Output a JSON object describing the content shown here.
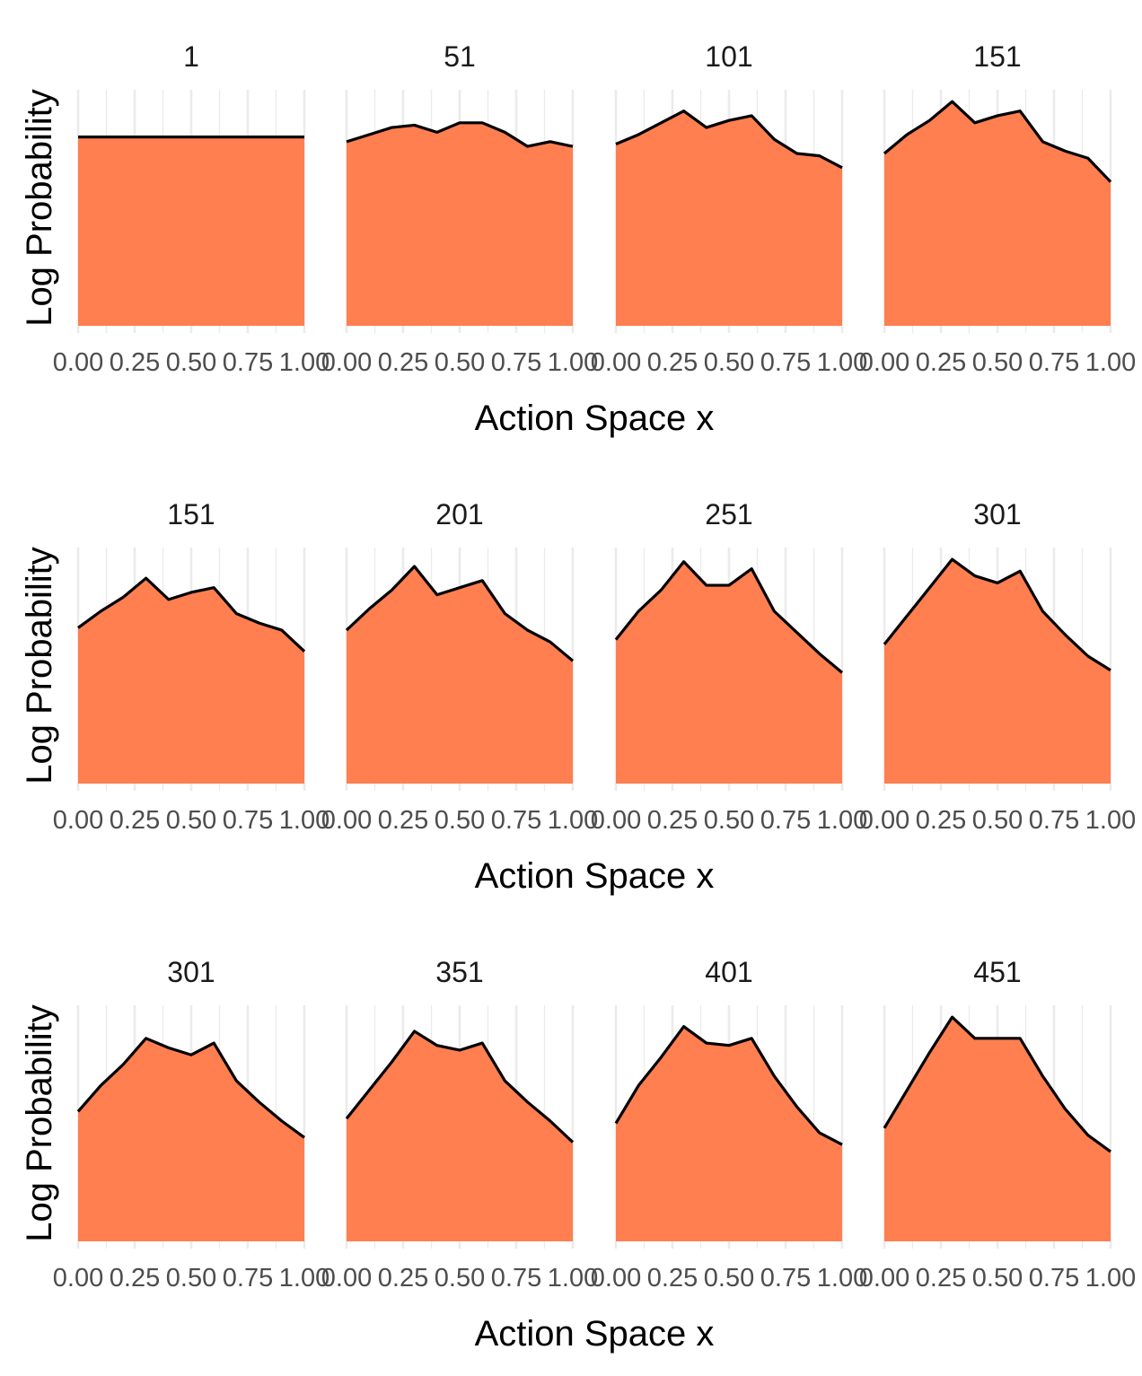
{
  "chart_data": {
    "type": "area",
    "ylabel": "Log Probability",
    "xlabel": "Action Space x",
    "x_tick_labels": [
      "0.00",
      "0.25",
      "0.50",
      "0.75",
      "1.00"
    ],
    "x": [
      0.0,
      0.1,
      0.2,
      0.3,
      0.4,
      0.5,
      0.6,
      0.7,
      0.8,
      0.9,
      1.0
    ],
    "xlim": [
      0,
      1
    ],
    "ylim": [
      0,
      1
    ],
    "grid": "vertical only",
    "colors": {
      "fill": "#ff7f50",
      "line": "#000000",
      "grid": "#ebebeb"
    },
    "rows": [
      {
        "xlabel": "Action Space x",
        "ylabel": "Log Probability",
        "panels": [
          {
            "title": "1",
            "values": [
              0.8,
              0.8,
              0.8,
              0.8,
              0.8,
              0.8,
              0.8,
              0.8,
              0.8,
              0.8,
              0.8
            ]
          },
          {
            "title": "51",
            "values": [
              0.78,
              0.81,
              0.84,
              0.85,
              0.82,
              0.86,
              0.86,
              0.82,
              0.76,
              0.78,
              0.76
            ]
          },
          {
            "title": "101",
            "values": [
              0.77,
              0.81,
              0.86,
              0.91,
              0.84,
              0.87,
              0.89,
              0.79,
              0.73,
              0.72,
              0.67
            ]
          },
          {
            "title": "151",
            "values": [
              0.73,
              0.81,
              0.87,
              0.95,
              0.86,
              0.89,
              0.91,
              0.78,
              0.74,
              0.71,
              0.61
            ]
          }
        ]
      },
      {
        "xlabel": "Action Space x",
        "ylabel": "Log Probability",
        "panels": [
          {
            "title": "151",
            "values": [
              0.66,
              0.73,
              0.79,
              0.87,
              0.78,
              0.81,
              0.83,
              0.72,
              0.68,
              0.65,
              0.56
            ]
          },
          {
            "title": "201",
            "values": [
              0.65,
              0.74,
              0.82,
              0.92,
              0.8,
              0.83,
              0.86,
              0.72,
              0.65,
              0.6,
              0.52
            ]
          },
          {
            "title": "251",
            "values": [
              0.61,
              0.73,
              0.82,
              0.94,
              0.84,
              0.84,
              0.91,
              0.73,
              0.64,
              0.55,
              0.47
            ]
          },
          {
            "title": "301",
            "values": [
              0.59,
              0.71,
              0.83,
              0.95,
              0.88,
              0.85,
              0.9,
              0.73,
              0.63,
              0.54,
              0.48
            ]
          }
        ]
      },
      {
        "xlabel": "Action Space x",
        "ylabel": "Log Probability",
        "panels": [
          {
            "title": "301",
            "values": [
              0.55,
              0.66,
              0.75,
              0.86,
              0.82,
              0.79,
              0.84,
              0.68,
              0.59,
              0.51,
              0.44
            ]
          },
          {
            "title": "351",
            "values": [
              0.52,
              0.64,
              0.76,
              0.89,
              0.83,
              0.81,
              0.84,
              0.68,
              0.59,
              0.51,
              0.42
            ]
          },
          {
            "title": "401",
            "values": [
              0.5,
              0.66,
              0.78,
              0.91,
              0.84,
              0.83,
              0.86,
              0.7,
              0.57,
              0.46,
              0.41
            ]
          },
          {
            "title": "451",
            "values": [
              0.48,
              0.64,
              0.8,
              0.95,
              0.86,
              0.86,
              0.86,
              0.7,
              0.56,
              0.45,
              0.38
            ]
          }
        ]
      }
    ]
  }
}
